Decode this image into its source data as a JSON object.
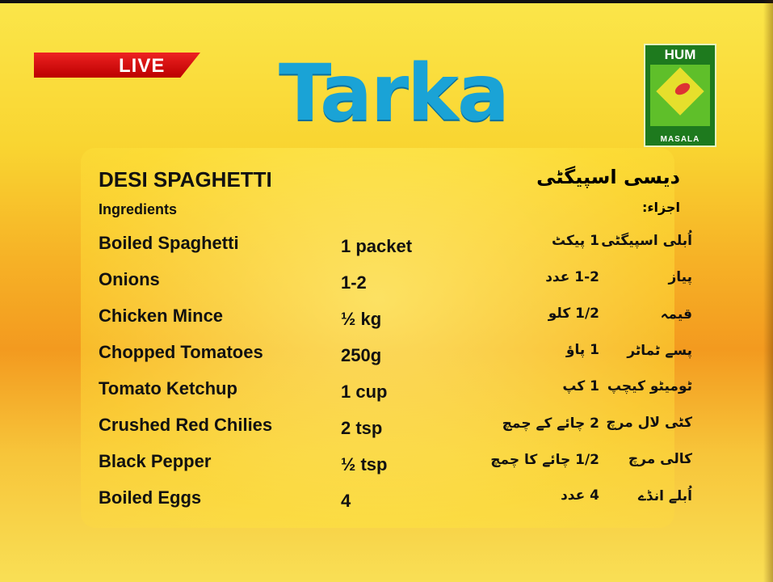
{
  "broadcast": {
    "live_label": "LIVE",
    "show_logo": "Tarka",
    "channel_logo_top": "HUM",
    "channel_logo_bottom": "MASALA",
    "accent": "#d81818"
  },
  "recipe": {
    "title": "DESI SPAGHETTI",
    "title_urdu": "دیسی اسپیگٹی",
    "ingredients_label": "Ingredients",
    "ingredients_label_urdu": "اجزاء:",
    "ingredients": [
      {
        "name": "Boiled Spaghetti",
        "qty": "1 packet",
        "name_urdu": "اُبلی اسپیگٹی",
        "qty_urdu": "1 پیکٹ"
      },
      {
        "name": "Onions",
        "qty": "1-2",
        "name_urdu": "پیاز",
        "qty_urdu": "1-2 عدد"
      },
      {
        "name": "Chicken Mince",
        "qty": "½ kg",
        "name_urdu": "قیمہ",
        "qty_urdu": "1/2 کلو"
      },
      {
        "name": "Chopped Tomatoes",
        "qty": "250g",
        "name_urdu": "پسے ٹماٹر",
        "qty_urdu": "1 پاؤ"
      },
      {
        "name": "Tomato Ketchup",
        "qty": "1 cup",
        "name_urdu": "ٹومیٹو کیچپ",
        "qty_urdu": "1 کپ"
      },
      {
        "name": "Crushed Red Chilies",
        "qty": "2 tsp",
        "name_urdu": "کٹی لال مرچ",
        "qty_urdu": "2 چائے کے چمچ"
      },
      {
        "name": "Black Pepper",
        "qty": "½ tsp",
        "name_urdu": "کالی مرچ",
        "qty_urdu": "1/2 چائے کا چمچ"
      },
      {
        "name": "Boiled Eggs",
        "qty": "4",
        "name_urdu": "اُبلے انڈے",
        "qty_urdu": "4 عدد"
      }
    ]
  }
}
